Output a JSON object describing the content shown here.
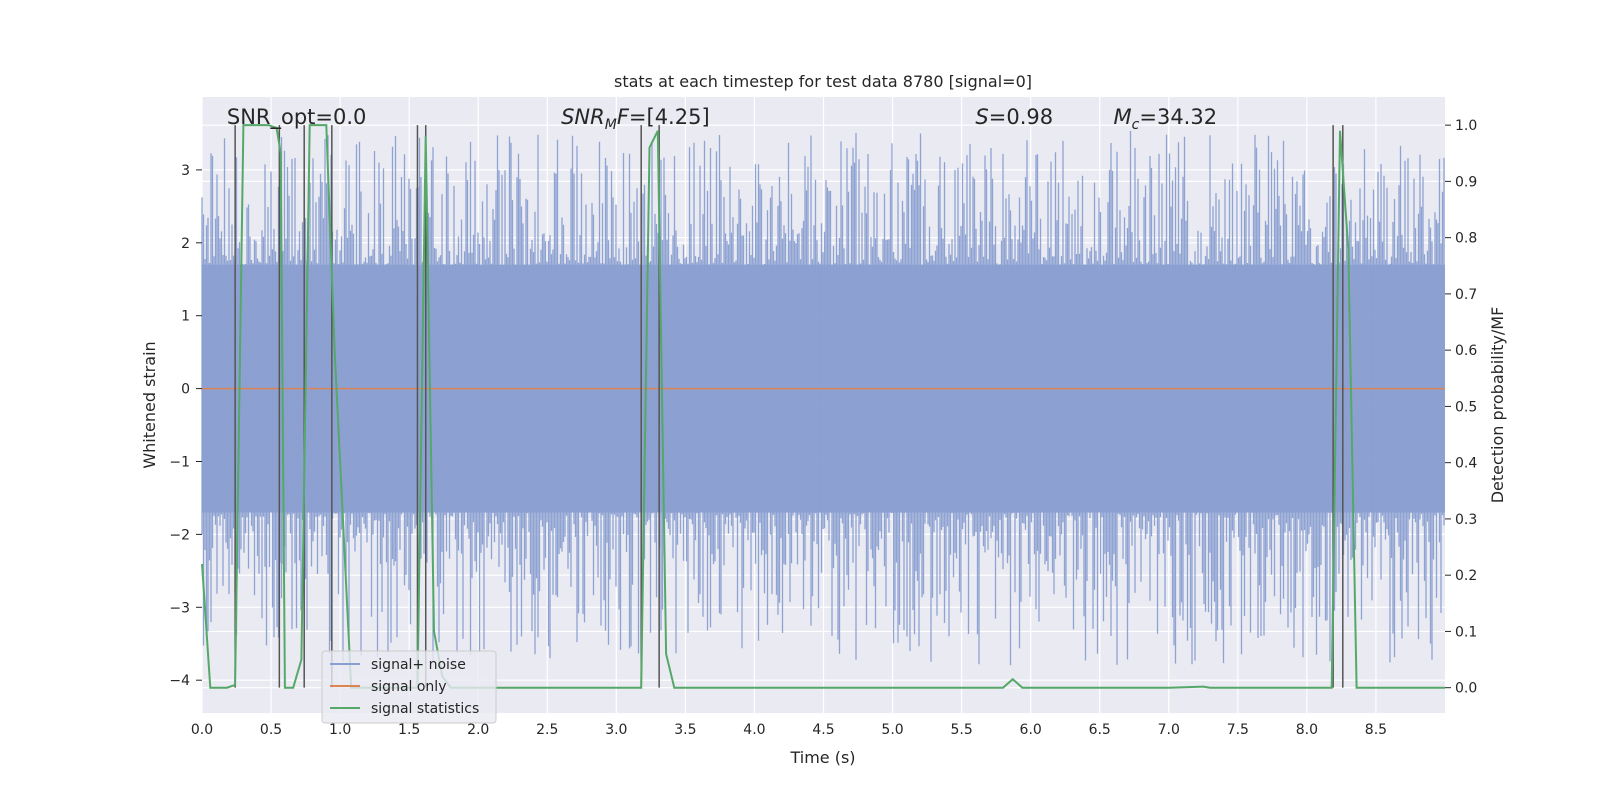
{
  "chart_data": {
    "type": "line",
    "title": "stats at each timestep for test data 8780 [signal=0]",
    "xlabel": "Time (s)",
    "ylabel": "Whitened strain",
    "ylabel_right": "Detection probability/MF",
    "xlim": [
      0,
      9.0
    ],
    "ylim": [
      -4.45,
      4.0
    ],
    "ylim_right": [
      -0.045,
      1.05
    ],
    "x_ticks": [
      0.0,
      0.5,
      1.0,
      1.5,
      2.0,
      2.5,
      3.0,
      3.5,
      4.0,
      4.5,
      5.0,
      5.5,
      6.0,
      6.5,
      7.0,
      7.5,
      8.0,
      8.5
    ],
    "x_tick_labels": [
      "0.0",
      "0.5",
      "1.0",
      "1.5",
      "2.0",
      "2.5",
      "3.0",
      "3.5",
      "4.0",
      "4.5",
      "5.0",
      "5.5",
      "6.0",
      "6.5",
      "7.0",
      "7.5",
      "8.0",
      "8.5"
    ],
    "y_ticks": [
      -4,
      -3,
      -2,
      -1,
      0,
      1,
      2,
      3
    ],
    "y_tick_labels": [
      "−4",
      "−3",
      "−2",
      "−1",
      "0",
      "1",
      "2",
      "3"
    ],
    "y_right_ticks": [
      0.0,
      0.1,
      0.2,
      0.3,
      0.4,
      0.5,
      0.6,
      0.7,
      0.8,
      0.9,
      1.0
    ],
    "y_right_tick_labels": [
      "0.0",
      "0.1",
      "0.2",
      "0.3",
      "0.4",
      "0.5",
      "0.6",
      "0.7",
      "0.8",
      "0.9",
      "1.0"
    ],
    "grid": true,
    "legend_position": "lower-left",
    "annotations": [
      {
        "text": "SNR_opt=0.0",
        "x": 0.18
      },
      {
        "text": "SNR_MF=[4.25]",
        "x": 2.6
      },
      {
        "text": "S=0.98",
        "x": 5.6
      },
      {
        "text": "M_c=34.32",
        "x": 6.6
      }
    ],
    "series": [
      {
        "name": "signal+ noise",
        "color": "#8a9fd1",
        "kind": "noise-band",
        "core_amplitude": 1.7,
        "max_positive_peak": 3.55,
        "min_negative_peak": -3.8
      },
      {
        "name": "signal only",
        "color": "#dd8452",
        "x": [
          0.0,
          9.0
        ],
        "y": [
          0.0,
          0.0
        ]
      },
      {
        "name": "signal statistics",
        "color": "#55a868",
        "axis": "right",
        "x": [
          0.0,
          0.06,
          0.12,
          0.18,
          0.24,
          0.3,
          0.36,
          0.42,
          0.48,
          0.54,
          0.57,
          0.6,
          0.66,
          0.72,
          0.78,
          0.84,
          0.9,
          0.96,
          1.02,
          1.08,
          1.14,
          1.2,
          1.32,
          1.44,
          1.56,
          1.62,
          1.68,
          1.74,
          1.8,
          1.86,
          1.92,
          1.98,
          2.1,
          2.5,
          3.0,
          3.18,
          3.24,
          3.3,
          3.36,
          3.42,
          3.5,
          4.0,
          5.0,
          5.8,
          5.87,
          5.94,
          6.0,
          7.0,
          7.25,
          7.3,
          8.0,
          8.18,
          8.24,
          8.3,
          8.36,
          8.4,
          8.5,
          9.0
        ],
        "y": [
          0.22,
          0.0,
          0.0,
          0.0,
          0.005,
          1.0,
          1.0,
          1.0,
          1.0,
          0.995,
          0.95,
          0.0,
          0.0,
          0.05,
          1.0,
          1.0,
          1.0,
          0.6,
          0.3,
          0.0,
          0.0,
          0.0,
          0.0,
          0.0,
          0.0,
          0.98,
          0.1,
          0.02,
          0.0,
          0.0,
          0.0,
          0.0,
          0.0,
          0.0,
          0.0,
          0.0,
          0.96,
          0.99,
          0.06,
          0.0,
          0.0,
          0.0,
          0.0,
          0.0,
          0.015,
          0.0,
          0.0,
          0.0,
          0.002,
          0.0,
          0.0,
          0.0,
          0.99,
          0.78,
          0.0,
          0.0,
          0.0,
          0.0
        ]
      }
    ],
    "vertical_markers": [
      0.24,
      0.56,
      0.74,
      0.94,
      1.56,
      1.62,
      3.18,
      3.31,
      8.19,
      8.26
    ],
    "marker_color": "#555555"
  }
}
